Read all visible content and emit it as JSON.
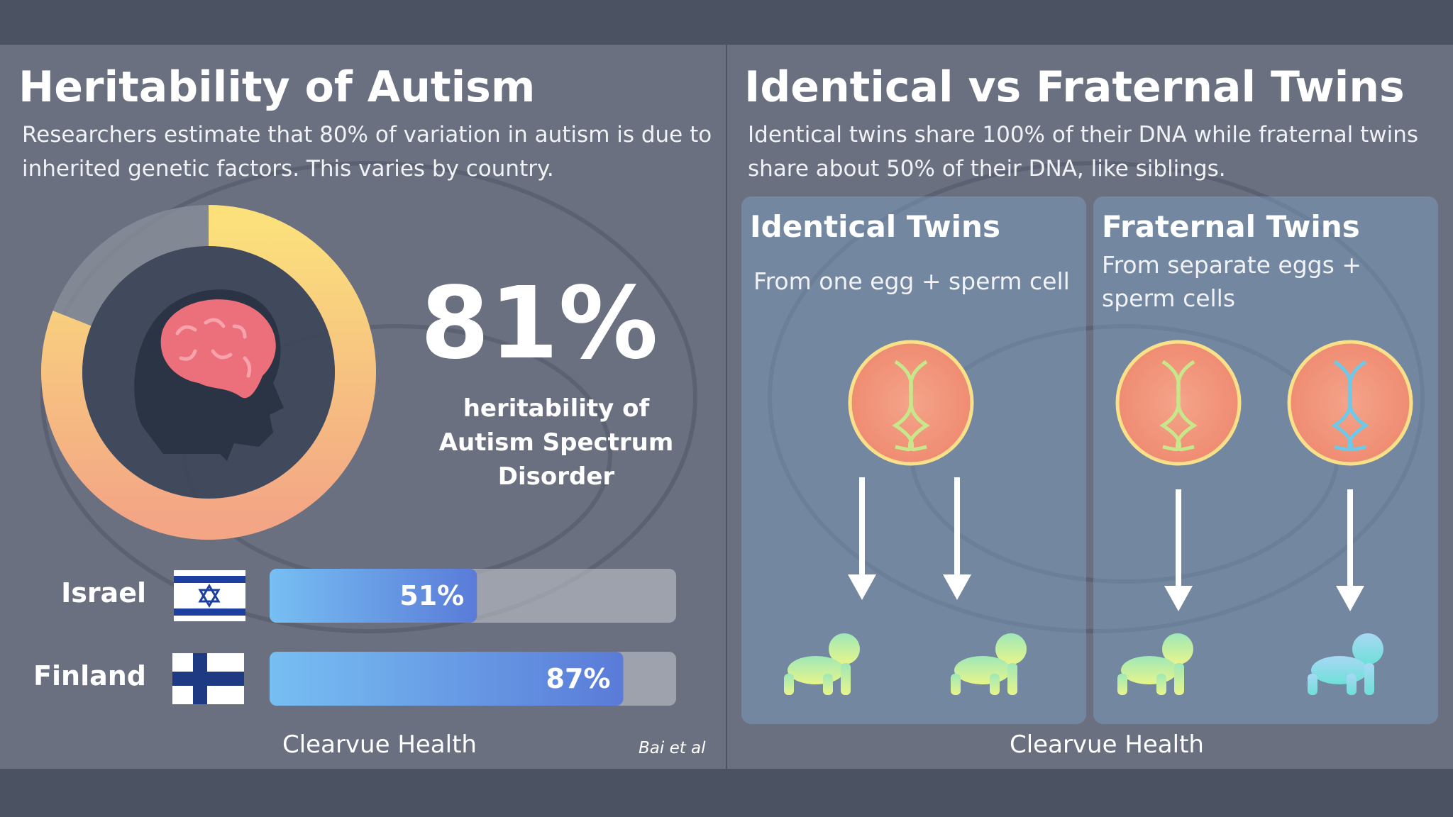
{
  "left": {
    "title": "Heritability of Autism",
    "subtitle": "Researchers estimate that 80% of variation in autism is due to inherited genetic factors. This varies by country.",
    "donut": {
      "value": 81,
      "value_label": "81%",
      "max": 100,
      "caption": "heritability of Autism Spectrum Disorder"
    },
    "bars": {
      "type": "bar",
      "categories": [
        "Israel",
        "Finland"
      ],
      "values": [
        51,
        87
      ],
      "value_labels": [
        "51%",
        "87%"
      ],
      "xlim": [
        0,
        100
      ]
    },
    "brand": "Clearvue Health",
    "source": "Bai et al"
  },
  "right": {
    "title": "Identical vs Fraternal Twins",
    "subtitle": "Identical twins share 100% of their DNA while fraternal twins share about 50% of their DNA, like siblings.",
    "identical": {
      "title": "Identical Twins",
      "text": "From one egg + sperm cell"
    },
    "fraternal": {
      "title": "Fraternal Twins",
      "text": "From separate eggs + sperm cells"
    },
    "brand": "Clearvue Health"
  }
}
